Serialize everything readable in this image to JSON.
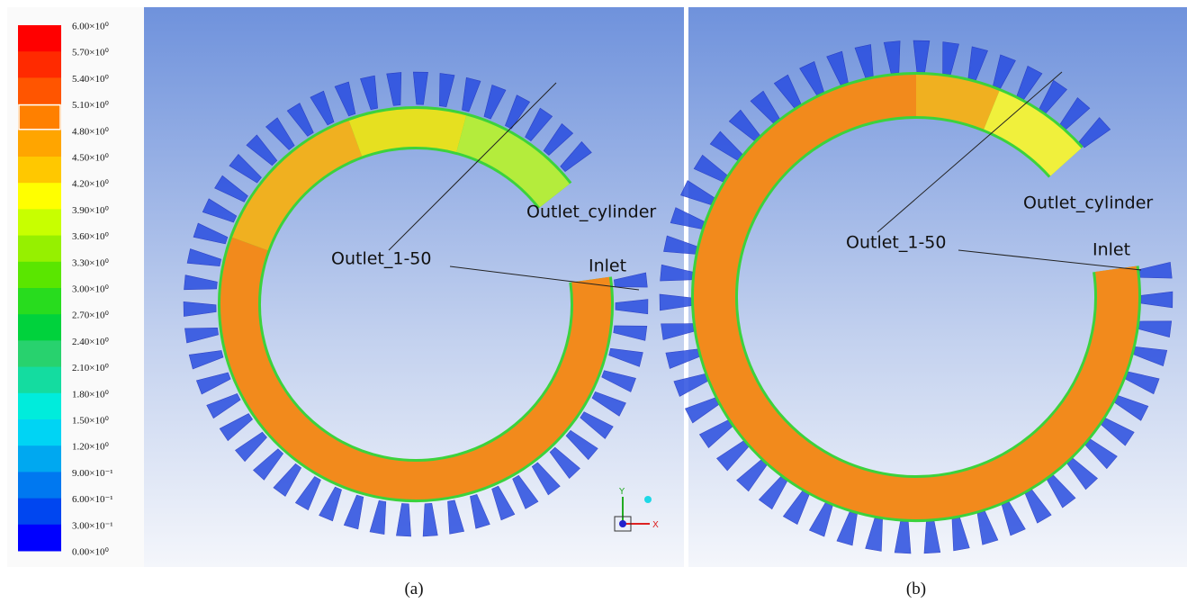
{
  "legend": {
    "labels": [
      "6.00×10⁰",
      "5.70×10⁰",
      "5.40×10⁰",
      "5.10×10⁰",
      "4.80×10⁰",
      "4.50×10⁰",
      "4.20×10⁰",
      "3.90×10⁰",
      "3.60×10⁰",
      "3.30×10⁰",
      "3.00×10⁰",
      "2.70×10⁰",
      "2.40×10⁰",
      "2.10×10⁰",
      "1.80×10⁰",
      "1.50×10⁰",
      "1.20×10⁰",
      "9.00×10⁻¹",
      "6.00×10⁻¹",
      "3.00×10⁻¹",
      "0.00×10⁰"
    ]
  },
  "panels": [
    {
      "caption": "(a)",
      "annotations": [
        "Outlet_cylinder",
        "Outlet_1-50",
        "Inlet"
      ],
      "triad": [
        "Y",
        "X"
      ]
    },
    {
      "caption": "(b)",
      "annotations": [
        "Outlet_cylinder",
        "Outlet_1-50",
        "Inlet"
      ]
    }
  ]
}
